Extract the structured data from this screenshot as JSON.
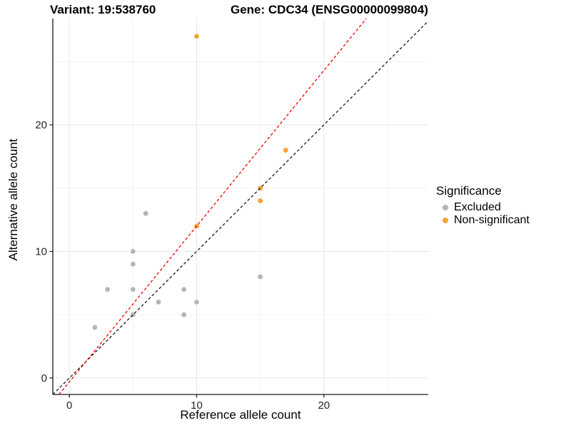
{
  "titles": {
    "variant": "Variant: 19:538760",
    "gene": "Gene: CDC34 (ENSG00000099804)"
  },
  "legend": {
    "title": "Significance",
    "items": [
      {
        "label": "Excluded",
        "color": "#B5B5B5"
      },
      {
        "label": "Non-significant",
        "color": "#F9A234"
      }
    ]
  },
  "chart_data": {
    "type": "scatter",
    "title_left": "Variant: 19:538760",
    "title_right": "Gene: CDC34 (ENSG00000099804)",
    "xlabel": "Reference allele count",
    "ylabel": "Alternative allele count",
    "xlim": [
      -1.3,
      28.2
    ],
    "ylim": [
      -1.3,
      28.4
    ],
    "x_ticks": [
      0,
      10,
      20
    ],
    "y_ticks": [
      0,
      10,
      20
    ],
    "x_minor_ticks": [
      5,
      15,
      25
    ],
    "y_minor_ticks": [
      5,
      15,
      25
    ],
    "grid": true,
    "legend_position": "right",
    "series": [
      {
        "name": "Excluded",
        "color": "#B5B5B5",
        "points": [
          [
            2,
            4
          ],
          [
            3,
            7
          ],
          [
            5,
            5
          ],
          [
            5,
            7
          ],
          [
            5,
            9
          ],
          [
            5,
            10
          ],
          [
            6,
            13
          ],
          [
            7,
            6
          ],
          [
            9,
            5
          ],
          [
            9,
            7
          ],
          [
            10,
            6
          ],
          [
            15,
            8
          ]
        ]
      },
      {
        "name": "Non-significant",
        "color": "#F9A234",
        "points": [
          [
            10,
            12
          ],
          [
            10,
            27
          ],
          [
            15,
            14
          ],
          [
            15,
            15
          ],
          [
            17,
            18
          ]
        ]
      }
    ],
    "lines": [
      {
        "name": "identity-line",
        "slope": 1.0,
        "intercept": 0.0,
        "color": "#1A1A1A",
        "dash": "4,3"
      },
      {
        "name": "expected-ratio-line",
        "slope": 1.23,
        "intercept": -0.3,
        "color": "#F40000",
        "dash": "4,3"
      }
    ],
    "colors": {
      "grid_major": "#E7E7E7",
      "grid_minor": "#F2F2F2",
      "axis_line": "#1A1A1A",
      "tick_text": "#262626"
    }
  }
}
